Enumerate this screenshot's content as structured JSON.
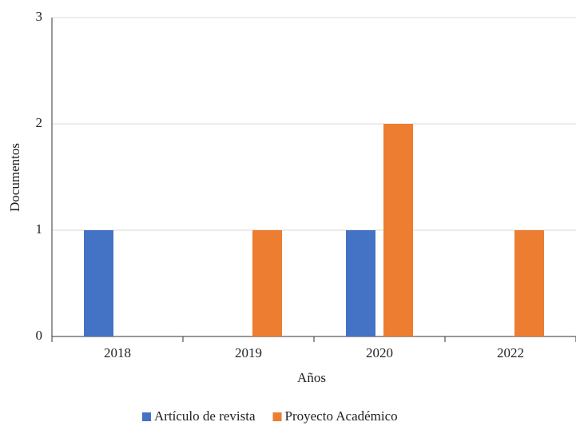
{
  "chart_data": {
    "type": "bar",
    "categories": [
      "2018",
      "2019",
      "2020",
      "2022"
    ],
    "series": [
      {
        "name": "Artículo de revista",
        "color": "#4472c4",
        "values": [
          1,
          0,
          1,
          0
        ]
      },
      {
        "name": "Proyecto Académico",
        "color": "#ed7d31",
        "values": [
          0,
          1,
          2,
          1
        ]
      }
    ],
    "x_label": "Años",
    "y_label": "Documentos",
    "ylim": [
      0,
      3
    ],
    "yticks": [
      0,
      1,
      2,
      3
    ],
    "grid": true,
    "legend": "bottom"
  }
}
